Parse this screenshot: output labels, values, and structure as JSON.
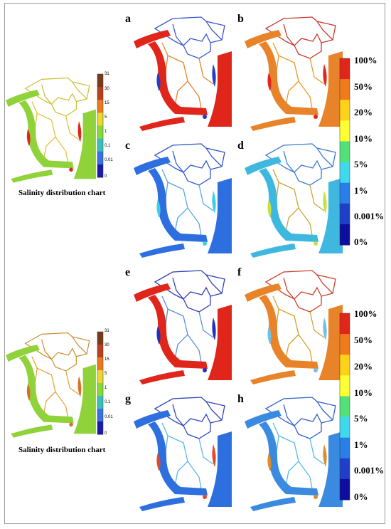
{
  "panels": [
    {
      "label": "a",
      "channel": "#e0261a",
      "inner": "#e8832a",
      "net": "#3a55d6",
      "accent": "#1f3fc9"
    },
    {
      "label": "b",
      "channel": "#e8832a",
      "inner": "#e79a2a",
      "net": "#c53a2a",
      "accent": "#e0261a"
    },
    {
      "label": "c",
      "channel": "#2e6fe0",
      "inner": "#5aa6e0",
      "net": "#2f55c8",
      "accent": "#3fd0e0"
    },
    {
      "label": "d",
      "channel": "#3fb8e0",
      "inner": "#c8a53a",
      "net": "#3a7ad0",
      "accent": "#c8e040"
    },
    {
      "label": "e",
      "channel": "#e0261a",
      "inner": "#5a8fe0",
      "net": "#2f3fb8",
      "accent": "#1f2fc0"
    },
    {
      "label": "f",
      "channel": "#e8832a",
      "inner": "#d8a02a",
      "net": "#c8402a",
      "accent": "#6fc0e8"
    },
    {
      "label": "g",
      "channel": "#2e6fe0",
      "inner": "#5ab8e8",
      "net": "#2f45c0",
      "accent": "#e04a2a"
    },
    {
      "label": "h",
      "channel": "#3a8ae0",
      "inner": "#58bce0",
      "net": "#3060d0",
      "accent": "#e08a2a"
    }
  ],
  "minimaps": [
    {
      "caption": "Salinity distribution chart",
      "channel": "#8fd23a",
      "inner": "#e0c030",
      "net": "#c8c030",
      "accent": "#e0261a"
    },
    {
      "caption": "Salinity distribution chart",
      "channel": "#8fd23a",
      "inner": "#e0a030",
      "net": "#c89030",
      "accent": "#d8702a"
    }
  ],
  "small_legend": {
    "ticks": [
      "31",
      "30",
      "15",
      "5",
      "1",
      "0.1",
      "0.01",
      "0"
    ],
    "colors": [
      "#7a3a1a",
      "#b8401a",
      "#e87a20",
      "#e8d830",
      "#88d838",
      "#38c0b8",
      "#3a70e0",
      "#1a1aa8"
    ]
  },
  "pct_legend": {
    "ticks": [
      "100%",
      "50%",
      "20%",
      "10%",
      "5%",
      "1%",
      "0.001%",
      "0%"
    ],
    "colors": [
      "#e0261a",
      "#f07b1a",
      "#ffd21a",
      "#ffff33",
      "#52e07a",
      "#3fd9ee",
      "#2a7ee8",
      "#1f3fc9",
      "#0d0d9e"
    ]
  }
}
